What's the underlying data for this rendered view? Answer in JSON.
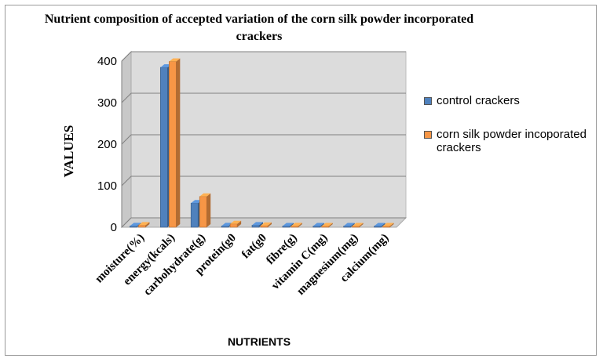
{
  "chart_data": {
    "type": "bar",
    "title": "Nutrient composition of accepted variation of the corn silk powder incorporated crackers",
    "xlabel": "NUTRIENTS",
    "ylabel": "VALUES",
    "ylim": [
      0,
      400
    ],
    "yticks": [
      "0",
      "100",
      "200",
      "300",
      "400"
    ],
    "grid": true,
    "legend_position": "right",
    "categories": [
      "moisture(%)",
      "energy(kcals)",
      "carbohydrate(g)",
      "protein(g0",
      "fat(g0",
      "fibre(g)",
      "vitamin C(mg)",
      "magnesium(mg)",
      "calcium(mg)"
    ],
    "series": [
      {
        "name": "control crackers",
        "color": "#4f81bd",
        "values": [
          3,
          385,
          58,
          3,
          5,
          2,
          1,
          1,
          1
        ]
      },
      {
        "name": "corn silk powder incoporated crackers",
        "color": "#f79646",
        "values": [
          5,
          399,
          74,
          8,
          4,
          3,
          2,
          2,
          2
        ]
      }
    ]
  }
}
